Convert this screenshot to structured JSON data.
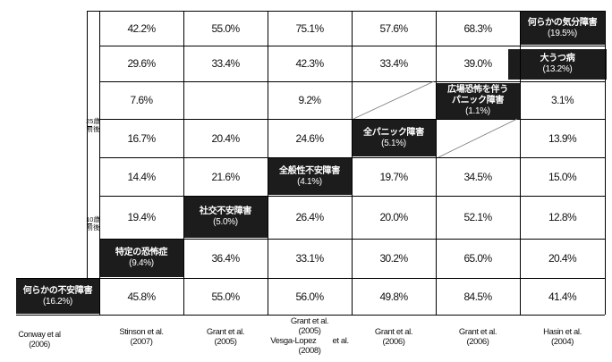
{
  "chart_data": {
    "type": "table",
    "row_labels": [
      "何らかの気分障害",
      "大うつ病",
      "広場恐怖を伴うパニック障害",
      "全パニック障害",
      "全般性不安障害",
      "社交不安障害",
      "特定の恐怖症",
      "何らかの不安障害"
    ],
    "diagonal_labels": [
      {
        "name": "何らかの気分障害",
        "value": "(19.5%)"
      },
      {
        "name": "大うつ病",
        "value": "(13.2%)"
      },
      {
        "name": "広場恐怖を伴う\nパニック障害",
        "value": "(1.1%)"
      },
      {
        "name": "全パニック障害",
        "value": "(5.1%)"
      },
      {
        "name": "全般性不安障害",
        "value": "(4.1%)"
      },
      {
        "name": "社交不安障害",
        "value": "(5.0%)"
      },
      {
        "name": "特定の恐怖症",
        "value": "(9.4%)"
      },
      {
        "name": "何らかの不安障害",
        "value": "(16.2%)"
      }
    ],
    "rows": [
      [
        "42.2%",
        "55.0%",
        "75.1%",
        "57.6%",
        "68.3%",
        null
      ],
      [
        "29.6%",
        "33.4%",
        "42.3%",
        "33.4%",
        "39.0%",
        null
      ],
      [
        "7.6%",
        "",
        "9.2%",
        "",
        null,
        "3.1%"
      ],
      [
        "16.7%",
        "20.4%",
        "24.6%",
        null,
        "",
        "13.9%"
      ],
      [
        "14.4%",
        "21.6%",
        null,
        "19.7%",
        "34.5%",
        "15.0%"
      ],
      [
        "19.4%",
        null,
        "26.4%",
        "20.0%",
        "52.1%",
        "12.8%"
      ],
      [
        null,
        "36.4%",
        "33.1%",
        "30.2%",
        "65.0%",
        "20.4%"
      ],
      [
        "45.8%",
        "55.0%",
        "56.0%",
        "49.8%",
        "84.5%",
        "41.4%"
      ]
    ],
    "y_axis_ticks": [
      "25歳\n前後",
      "10歳\n前後"
    ],
    "studies": [
      {
        "name": "Conway et al",
        "year": "(2006)"
      },
      {
        "name": "Stinson et al.",
        "year": "(2007)"
      },
      {
        "name": "Grant et al.",
        "year": "(2005)"
      },
      {
        "name": "Grant et al.\n(2005)\nVesga-Lopez　　et al.",
        "year": "(2008)"
      },
      {
        "name": "Grant et al.",
        "year": "(2006)"
      },
      {
        "name": "Grant et al.",
        "year": "(2006)"
      },
      {
        "name": "Hasin et al.",
        "year": "(2004)"
      }
    ]
  }
}
